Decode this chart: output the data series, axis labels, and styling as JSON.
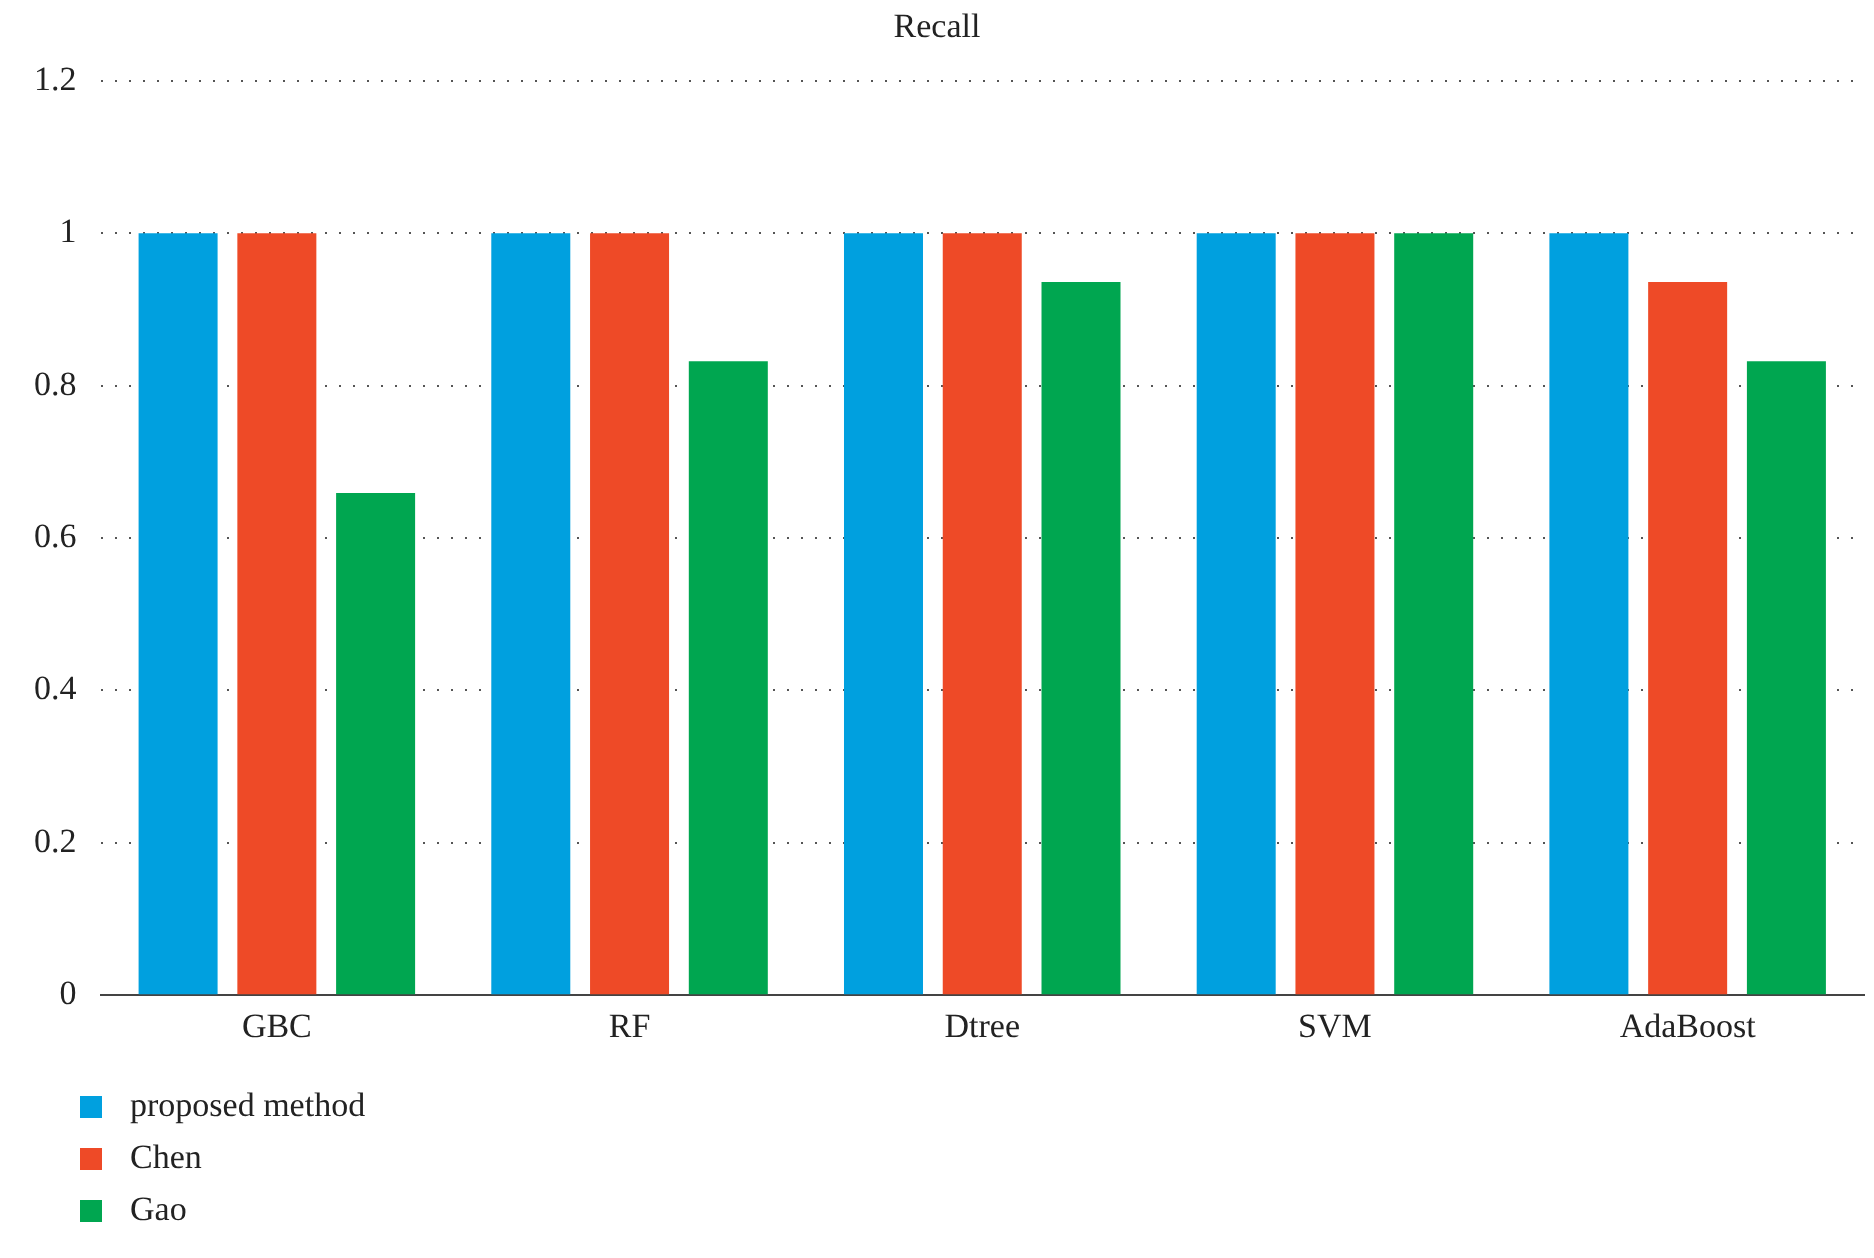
{
  "chart_data": {
    "type": "bar",
    "title": "Recall",
    "categories": [
      "GBC",
      "RF",
      "Dtree",
      "SVM",
      "AdaBoost"
    ],
    "series": [
      {
        "name": "proposed method",
        "color": "#00a0df",
        "values": [
          1,
          1,
          1,
          1,
          1
        ]
      },
      {
        "name": "Chen",
        "color": "#ee4a27",
        "values": [
          1,
          1,
          1,
          1,
          0.936
        ]
      },
      {
        "name": "Gao",
        "color": "#00a650",
        "values": [
          0.659,
          0.832,
          0.936,
          1,
          0.832
        ]
      }
    ],
    "ylim": [
      0,
      1.2
    ],
    "yticks": [
      0,
      0.2,
      0.4,
      0.6,
      0.8,
      1,
      1.2
    ],
    "grid": "y",
    "legend": "bottom left"
  }
}
